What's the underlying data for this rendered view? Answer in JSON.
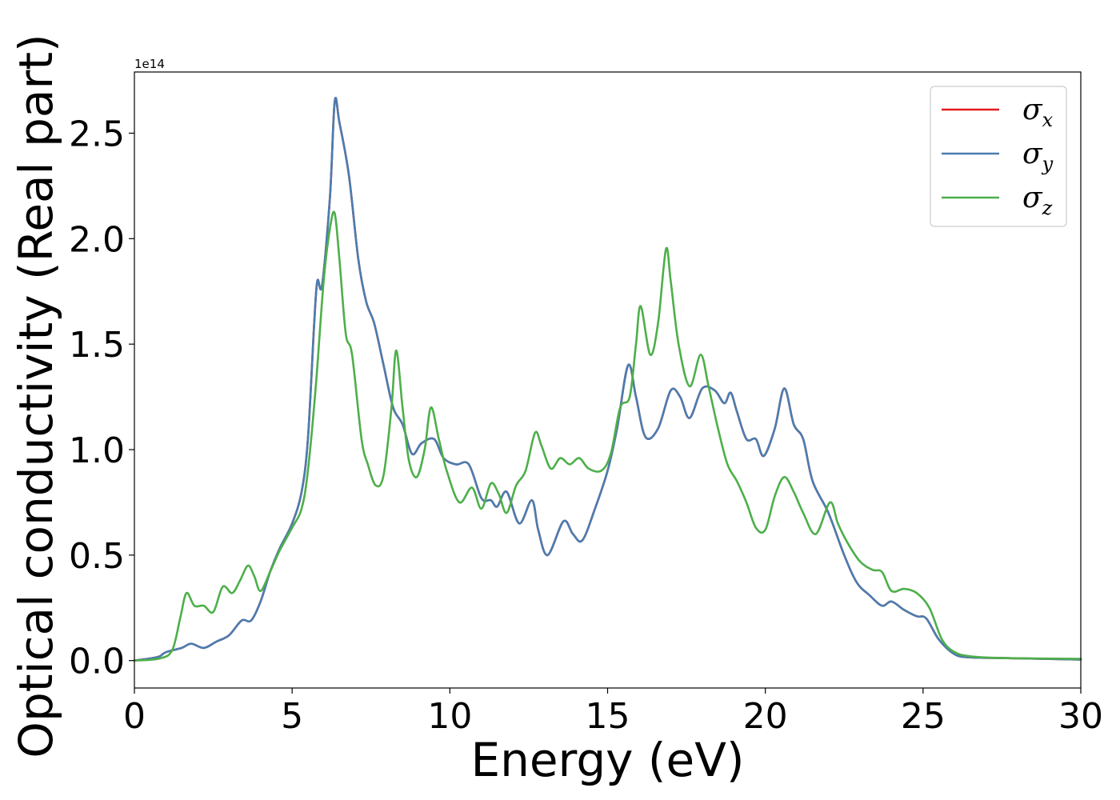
{
  "chart_data": {
    "type": "line",
    "xlabel": "Energy (eV)",
    "ylabel": "Optical conductivity (Real part)",
    "y_offset_label": "1e14",
    "xlim": [
      0,
      30
    ],
    "ylim": [
      -0.13,
      2.79
    ],
    "x_ticks": [
      0,
      5,
      10,
      15,
      20,
      25,
      30
    ],
    "x_tick_labels": [
      "0",
      "5",
      "10",
      "15",
      "20",
      "25",
      "30"
    ],
    "y_ticks": [
      0.0,
      0.5,
      1.0,
      1.5,
      2.0,
      2.5
    ],
    "y_tick_labels": [
      "0.0",
      "0.5",
      "1.0",
      "1.5",
      "2.0",
      "2.5"
    ],
    "grid": false,
    "legend_position": "top-right",
    "series": [
      {
        "name": "σ",
        "subscript": "x",
        "color": "#e41a1c",
        "points": [
          [
            0,
            0
          ],
          [
            0.5,
            0.01
          ],
          [
            0.8,
            0.02
          ],
          [
            1,
            0.04
          ],
          [
            1.5,
            0.06
          ],
          [
            1.8,
            0.08
          ],
          [
            2.2,
            0.06
          ],
          [
            2.6,
            0.09
          ],
          [
            3.0,
            0.12
          ],
          [
            3.4,
            0.19
          ],
          [
            3.7,
            0.19
          ],
          [
            4.0,
            0.28
          ],
          [
            4.3,
            0.42
          ],
          [
            4.6,
            0.53
          ],
          [
            5.0,
            0.65
          ],
          [
            5.3,
            0.8
          ],
          [
            5.5,
            1.05
          ],
          [
            5.7,
            1.6
          ],
          [
            5.8,
            1.8
          ],
          [
            5.95,
            1.78
          ],
          [
            6.2,
            2.2
          ],
          [
            6.35,
            2.65
          ],
          [
            6.5,
            2.55
          ],
          [
            6.8,
            2.3
          ],
          [
            7.1,
            1.9
          ],
          [
            7.35,
            1.7
          ],
          [
            7.6,
            1.6
          ],
          [
            7.9,
            1.4
          ],
          [
            8.2,
            1.2
          ],
          [
            8.5,
            1.12
          ],
          [
            8.8,
            0.98
          ],
          [
            9.1,
            1.03
          ],
          [
            9.5,
            1.05
          ],
          [
            9.8,
            0.96
          ],
          [
            10.2,
            0.93
          ],
          [
            10.6,
            0.93
          ],
          [
            11.0,
            0.77
          ],
          [
            11.3,
            0.76
          ],
          [
            11.5,
            0.73
          ],
          [
            11.8,
            0.8
          ],
          [
            12.2,
            0.65
          ],
          [
            12.6,
            0.76
          ],
          [
            12.8,
            0.62
          ],
          [
            13.1,
            0.5
          ],
          [
            13.6,
            0.66
          ],
          [
            13.9,
            0.6
          ],
          [
            14.2,
            0.57
          ],
          [
            14.6,
            0.72
          ],
          [
            15.0,
            0.9
          ],
          [
            15.3,
            1.1
          ],
          [
            15.65,
            1.4
          ],
          [
            15.9,
            1.25
          ],
          [
            16.2,
            1.06
          ],
          [
            16.6,
            1.1
          ],
          [
            17.0,
            1.28
          ],
          [
            17.3,
            1.25
          ],
          [
            17.6,
            1.15
          ],
          [
            18.0,
            1.29
          ],
          [
            18.4,
            1.28
          ],
          [
            18.7,
            1.22
          ],
          [
            18.9,
            1.27
          ],
          [
            19.1,
            1.18
          ],
          [
            19.4,
            1.05
          ],
          [
            19.7,
            1.05
          ],
          [
            19.95,
            0.97
          ],
          [
            20.3,
            1.1
          ],
          [
            20.6,
            1.29
          ],
          [
            20.9,
            1.12
          ],
          [
            21.2,
            1.05
          ],
          [
            21.5,
            0.85
          ],
          [
            22.0,
            0.7
          ],
          [
            22.5,
            0.5
          ],
          [
            22.9,
            0.37
          ],
          [
            23.3,
            0.31
          ],
          [
            23.7,
            0.26
          ],
          [
            24.0,
            0.28
          ],
          [
            24.4,
            0.24
          ],
          [
            24.8,
            0.21
          ],
          [
            25.1,
            0.2
          ],
          [
            25.5,
            0.1
          ],
          [
            26.0,
            0.03
          ],
          [
            26.5,
            0.015
          ],
          [
            27.5,
            0.012
          ],
          [
            30,
            0.005
          ]
        ]
      },
      {
        "name": "σ",
        "subscript": "y",
        "color": "#4a7db0",
        "points": [
          [
            0,
            0
          ],
          [
            0.5,
            0.01
          ],
          [
            0.8,
            0.02
          ],
          [
            1,
            0.04
          ],
          [
            1.5,
            0.06
          ],
          [
            1.8,
            0.08
          ],
          [
            2.2,
            0.06
          ],
          [
            2.6,
            0.09
          ],
          [
            3.0,
            0.12
          ],
          [
            3.4,
            0.19
          ],
          [
            3.7,
            0.19
          ],
          [
            4.0,
            0.28
          ],
          [
            4.3,
            0.42
          ],
          [
            4.6,
            0.53
          ],
          [
            5.0,
            0.65
          ],
          [
            5.3,
            0.8
          ],
          [
            5.5,
            1.05
          ],
          [
            5.7,
            1.6
          ],
          [
            5.8,
            1.8
          ],
          [
            5.95,
            1.78
          ],
          [
            6.2,
            2.2
          ],
          [
            6.35,
            2.65
          ],
          [
            6.5,
            2.55
          ],
          [
            6.8,
            2.3
          ],
          [
            7.1,
            1.9
          ],
          [
            7.35,
            1.7
          ],
          [
            7.6,
            1.6
          ],
          [
            7.9,
            1.4
          ],
          [
            8.2,
            1.2
          ],
          [
            8.5,
            1.12
          ],
          [
            8.8,
            0.98
          ],
          [
            9.1,
            1.03
          ],
          [
            9.5,
            1.05
          ],
          [
            9.8,
            0.96
          ],
          [
            10.2,
            0.93
          ],
          [
            10.6,
            0.93
          ],
          [
            11.0,
            0.77
          ],
          [
            11.3,
            0.76
          ],
          [
            11.5,
            0.73
          ],
          [
            11.8,
            0.8
          ],
          [
            12.2,
            0.65
          ],
          [
            12.6,
            0.76
          ],
          [
            12.8,
            0.62
          ],
          [
            13.1,
            0.5
          ],
          [
            13.6,
            0.66
          ],
          [
            13.9,
            0.6
          ],
          [
            14.2,
            0.57
          ],
          [
            14.6,
            0.72
          ],
          [
            15.0,
            0.9
          ],
          [
            15.3,
            1.1
          ],
          [
            15.65,
            1.4
          ],
          [
            15.9,
            1.25
          ],
          [
            16.2,
            1.06
          ],
          [
            16.6,
            1.1
          ],
          [
            17.0,
            1.28
          ],
          [
            17.3,
            1.25
          ],
          [
            17.6,
            1.15
          ],
          [
            18.0,
            1.29
          ],
          [
            18.4,
            1.28
          ],
          [
            18.7,
            1.22
          ],
          [
            18.9,
            1.27
          ],
          [
            19.1,
            1.18
          ],
          [
            19.4,
            1.05
          ],
          [
            19.7,
            1.05
          ],
          [
            19.95,
            0.97
          ],
          [
            20.3,
            1.1
          ],
          [
            20.6,
            1.29
          ],
          [
            20.9,
            1.12
          ],
          [
            21.2,
            1.05
          ],
          [
            21.5,
            0.85
          ],
          [
            22.0,
            0.7
          ],
          [
            22.5,
            0.5
          ],
          [
            22.9,
            0.37
          ],
          [
            23.3,
            0.31
          ],
          [
            23.7,
            0.26
          ],
          [
            24.0,
            0.28
          ],
          [
            24.4,
            0.24
          ],
          [
            24.8,
            0.21
          ],
          [
            25.1,
            0.2
          ],
          [
            25.5,
            0.1
          ],
          [
            26.0,
            0.03
          ],
          [
            26.5,
            0.015
          ],
          [
            27.5,
            0.012
          ],
          [
            30,
            0.005
          ]
        ]
      },
      {
        "name": "σ",
        "subscript": "z",
        "color": "#4daf4a",
        "points": [
          [
            0,
            0
          ],
          [
            0.8,
            0.01
          ],
          [
            1.2,
            0.05
          ],
          [
            1.45,
            0.2
          ],
          [
            1.65,
            0.32
          ],
          [
            1.9,
            0.26
          ],
          [
            2.2,
            0.26
          ],
          [
            2.5,
            0.23
          ],
          [
            2.8,
            0.35
          ],
          [
            3.1,
            0.32
          ],
          [
            3.35,
            0.38
          ],
          [
            3.6,
            0.45
          ],
          [
            3.8,
            0.4
          ],
          [
            4.0,
            0.33
          ],
          [
            4.3,
            0.42
          ],
          [
            4.6,
            0.52
          ],
          [
            5.0,
            0.63
          ],
          [
            5.3,
            0.72
          ],
          [
            5.5,
            0.9
          ],
          [
            5.75,
            1.3
          ],
          [
            6.0,
            1.8
          ],
          [
            6.2,
            2.05
          ],
          [
            6.35,
            2.12
          ],
          [
            6.5,
            1.9
          ],
          [
            6.7,
            1.55
          ],
          [
            6.9,
            1.45
          ],
          [
            7.2,
            1.05
          ],
          [
            7.4,
            0.93
          ],
          [
            7.65,
            0.83
          ],
          [
            7.9,
            0.88
          ],
          [
            8.15,
            1.2
          ],
          [
            8.3,
            1.47
          ],
          [
            8.5,
            1.2
          ],
          [
            8.7,
            0.95
          ],
          [
            8.95,
            0.87
          ],
          [
            9.2,
            1.0
          ],
          [
            9.4,
            1.2
          ],
          [
            9.65,
            1.05
          ],
          [
            9.9,
            0.9
          ],
          [
            10.3,
            0.75
          ],
          [
            10.7,
            0.82
          ],
          [
            11.0,
            0.72
          ],
          [
            11.3,
            0.84
          ],
          [
            11.55,
            0.79
          ],
          [
            11.8,
            0.7
          ],
          [
            12.1,
            0.83
          ],
          [
            12.4,
            0.9
          ],
          [
            12.7,
            1.08
          ],
          [
            12.9,
            1.02
          ],
          [
            13.2,
            0.91
          ],
          [
            13.5,
            0.96
          ],
          [
            13.8,
            0.93
          ],
          [
            14.1,
            0.96
          ],
          [
            14.4,
            0.91
          ],
          [
            14.8,
            0.9
          ],
          [
            15.1,
            0.98
          ],
          [
            15.4,
            1.2
          ],
          [
            15.7,
            1.25
          ],
          [
            15.9,
            1.5
          ],
          [
            16.05,
            1.68
          ],
          [
            16.35,
            1.45
          ],
          [
            16.6,
            1.6
          ],
          [
            16.85,
            1.95
          ],
          [
            17.0,
            1.8
          ],
          [
            17.25,
            1.5
          ],
          [
            17.6,
            1.3
          ],
          [
            17.95,
            1.45
          ],
          [
            18.2,
            1.3
          ],
          [
            18.5,
            1.1
          ],
          [
            18.8,
            0.93
          ],
          [
            19.1,
            0.85
          ],
          [
            19.4,
            0.75
          ],
          [
            19.7,
            0.63
          ],
          [
            20.0,
            0.62
          ],
          [
            20.3,
            0.78
          ],
          [
            20.6,
            0.87
          ],
          [
            20.9,
            0.8
          ],
          [
            21.2,
            0.7
          ],
          [
            21.6,
            0.6
          ],
          [
            22.05,
            0.75
          ],
          [
            22.3,
            0.65
          ],
          [
            22.6,
            0.56
          ],
          [
            23.0,
            0.47
          ],
          [
            23.4,
            0.43
          ],
          [
            23.7,
            0.42
          ],
          [
            24.0,
            0.33
          ],
          [
            24.4,
            0.34
          ],
          [
            24.8,
            0.32
          ],
          [
            25.2,
            0.25
          ],
          [
            25.6,
            0.1
          ],
          [
            26.0,
            0.04
          ],
          [
            26.5,
            0.02
          ],
          [
            27.5,
            0.012
          ],
          [
            30,
            0.008
          ]
        ]
      }
    ]
  }
}
